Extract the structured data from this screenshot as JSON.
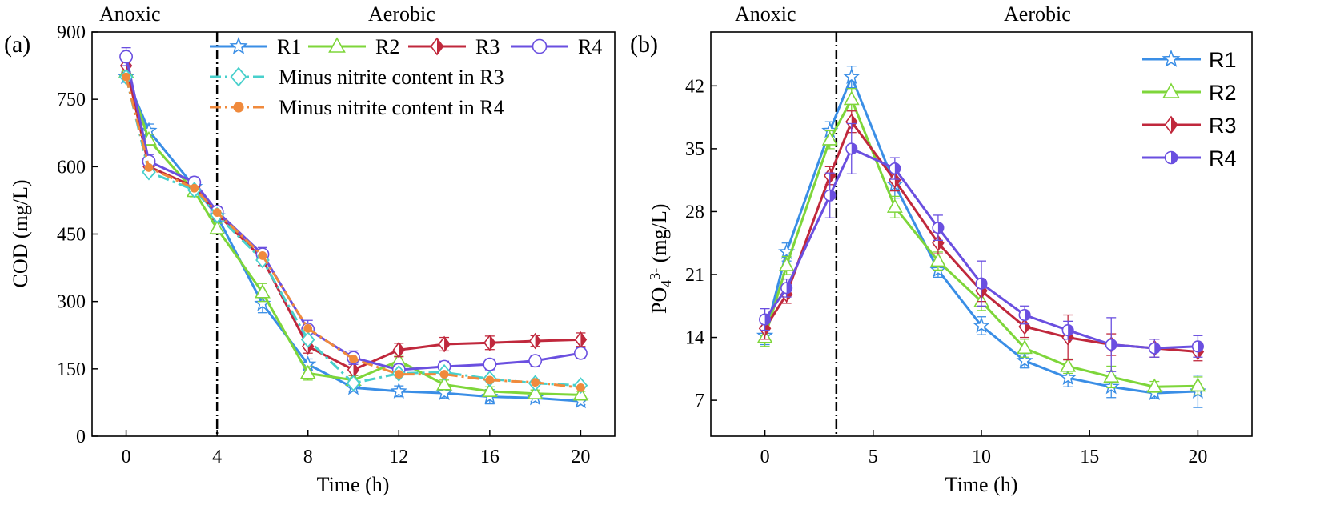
{
  "chart_data": [
    {
      "type": "line",
      "panel_label": "(a)",
      "phase_labels": [
        "Anoxic",
        "Aerobic"
      ],
      "phase_boundary_x": 4,
      "xlabel": "Time (h)",
      "ylabel": "COD (mg/L)",
      "xlim": [
        -1.5,
        21.5
      ],
      "ylim": [
        0,
        900
      ],
      "xticks": [
        0,
        4,
        8,
        12,
        16,
        20
      ],
      "yticks": [
        0,
        150,
        300,
        450,
        600,
        750,
        900
      ],
      "xtick_labels": [
        "0",
        "4",
        "8",
        "12",
        "16",
        "20"
      ],
      "ytick_labels": [
        "0",
        "150",
        "300",
        "450",
        "600",
        "750",
        "900"
      ],
      "grid": false,
      "legend_position": "top",
      "series": [
        {
          "name": "R1",
          "color": "#3a8ee6",
          "marker": "star",
          "dash": "solid",
          "x": [
            0,
            1,
            3,
            4,
            6,
            8,
            10,
            12,
            14,
            16,
            18,
            20
          ],
          "y": [
            800,
            680,
            555,
            490,
            295,
            160,
            108,
            100,
            96,
            88,
            85,
            78
          ],
          "err": [
            12,
            15,
            15,
            12,
            20,
            12,
            8,
            12,
            12,
            16,
            8,
            8
          ]
        },
        {
          "name": "R2",
          "color": "#7ed63a",
          "marker": "triangle",
          "dash": "solid",
          "x": [
            0,
            1,
            3,
            4,
            6,
            8,
            10,
            12,
            14,
            16,
            18,
            20
          ],
          "y": [
            810,
            660,
            545,
            462,
            320,
            140,
            125,
            168,
            115,
            100,
            95,
            92
          ],
          "err": [
            12,
            12,
            12,
            12,
            20,
            15,
            10,
            10,
            10,
            10,
            8,
            8
          ]
        },
        {
          "name": "R3",
          "color": "#c0283c",
          "marker": "diamond-half",
          "dash": "solid",
          "x": [
            0,
            1,
            3,
            4,
            6,
            8,
            10,
            12,
            14,
            16,
            18,
            20
          ],
          "y": [
            825,
            600,
            555,
            495,
            395,
            200,
            148,
            192,
            205,
            208,
            212,
            215
          ],
          "err": [
            15,
            15,
            12,
            12,
            15,
            15,
            12,
            15,
            15,
            15,
            12,
            15
          ]
        },
        {
          "name": "R4",
          "color": "#6a4fe0",
          "marker": "circle-open",
          "dash": "solid",
          "x": [
            0,
            1,
            3,
            4,
            6,
            8,
            10,
            12,
            14,
            16,
            18,
            20
          ],
          "y": [
            845,
            612,
            565,
            500,
            405,
            238,
            175,
            148,
            155,
            160,
            168,
            185
          ],
          "err": [
            20,
            15,
            12,
            12,
            15,
            20,
            15,
            12,
            12,
            12,
            12,
            12
          ]
        },
        {
          "name": "Minus nitrite content in R3",
          "color": "#48d0cc",
          "marker": "diamond-open",
          "dash": "dashdot",
          "x": [
            0,
            1,
            3,
            4,
            6,
            8,
            10,
            12,
            14,
            16,
            18,
            20
          ],
          "y": [
            800,
            588,
            548,
            492,
            392,
            215,
            118,
            140,
            142,
            128,
            118,
            113
          ],
          "err": []
        },
        {
          "name": "Minus nitrite content in R4",
          "color": "#f08a3c",
          "marker": "dot",
          "dash": "dashdot",
          "x": [
            0,
            1,
            3,
            4,
            6,
            8,
            10,
            12,
            14,
            16,
            18,
            20
          ],
          "y": [
            800,
            598,
            552,
            498,
            402,
            240,
            172,
            138,
            138,
            125,
            120,
            108
          ],
          "err": []
        }
      ]
    },
    {
      "type": "line",
      "panel_label": "(b)",
      "phase_labels": [
        "Anoxic",
        "Aerobic"
      ],
      "phase_boundary_x": 3.3,
      "xlabel": "Time (h)",
      "ylabel_main": "PO",
      "ylabel_sub": "4",
      "ylabel_sup": "3-",
      "ylabel_unit": " (mg/L)",
      "xlim": [
        -2.5,
        22.5
      ],
      "ylim": [
        3,
        48
      ],
      "xticks": [
        0,
        5,
        10,
        15,
        20
      ],
      "yticks": [
        7,
        14,
        21,
        28,
        35,
        42
      ],
      "xtick_labels": [
        "0",
        "5",
        "10",
        "15",
        "20"
      ],
      "ytick_labels": [
        "7",
        "14",
        "21",
        "28",
        "35",
        "42"
      ],
      "grid": false,
      "legend_position": "top-right",
      "series": [
        {
          "name": "R1",
          "color": "#3a8ee6",
          "marker": "star",
          "x": [
            0,
            1,
            3,
            4,
            6,
            8,
            10,
            12,
            14,
            16,
            18,
            20
          ],
          "y": [
            14.2,
            23.5,
            37.0,
            43.0,
            31.0,
            21.5,
            15.3,
            11.4,
            9.5,
            8.5,
            7.8,
            8.0
          ],
          "err": [
            1.0,
            1.0,
            1.0,
            1.2,
            1.5,
            0.8,
            1.0,
            0.8,
            1.0,
            1.2,
            0.6,
            1.8
          ]
        },
        {
          "name": "R2",
          "color": "#7ed63a",
          "marker": "triangle",
          "x": [
            0,
            1,
            3,
            4,
            6,
            8,
            10,
            12,
            14,
            16,
            18,
            20
          ],
          "y": [
            14.0,
            22.0,
            36.0,
            40.5,
            28.5,
            22.5,
            18.0,
            12.8,
            10.8,
            9.6,
            8.5,
            8.6
          ],
          "err": [
            1.0,
            1.0,
            1.0,
            1.2,
            1.2,
            1.0,
            1.0,
            1.0,
            0.8,
            1.2,
            0.6,
            1.0
          ]
        },
        {
          "name": "R3",
          "color": "#c0283c",
          "marker": "diamond-half",
          "x": [
            0,
            1,
            3,
            4,
            6,
            8,
            10,
            12,
            14,
            16,
            18,
            20
          ],
          "y": [
            15.0,
            18.8,
            32.0,
            38.0,
            31.5,
            24.5,
            19.2,
            15.2,
            14.0,
            13.2,
            12.8,
            12.4
          ],
          "err": [
            1.2,
            1.0,
            1.0,
            1.2,
            1.2,
            1.2,
            1.2,
            1.2,
            2.5,
            1.2,
            1.0,
            1.0
          ]
        },
        {
          "name": "R4",
          "color": "#6a4fe0",
          "marker": "circle-half",
          "x": [
            0,
            1,
            3,
            4,
            6,
            8,
            10,
            12,
            14,
            16,
            18,
            20
          ],
          "y": [
            16.0,
            19.5,
            29.8,
            35.0,
            32.8,
            26.2,
            20.0,
            16.5,
            14.8,
            13.2,
            12.8,
            13.0
          ],
          "err": [
            1.2,
            1.0,
            2.5,
            2.8,
            1.2,
            1.4,
            2.5,
            1.0,
            1.0,
            3.0,
            1.0,
            1.2
          ]
        }
      ]
    }
  ]
}
